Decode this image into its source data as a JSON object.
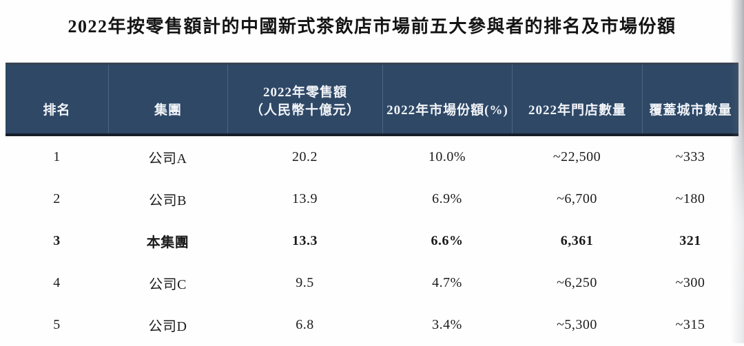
{
  "title": "2022年按零售額計的中國新式茶飲店市場前五大參與者的排名及市場份額",
  "table": {
    "columns": [
      {
        "line1": "排名"
      },
      {
        "line1": "集團"
      },
      {
        "line1": "2022年零售額",
        "line2": "（人民幣十億元）"
      },
      {
        "line1": "2022年市場份額(%)"
      },
      {
        "line1": "2022年門店數量"
      },
      {
        "line1": "覆蓋城市數量"
      }
    ],
    "rows": [
      {
        "cells": [
          "1",
          "公司A",
          "20.2",
          "10.0%",
          "~22,500",
          "~333"
        ],
        "emphasis": false
      },
      {
        "cells": [
          "2",
          "公司B",
          "13.9",
          "6.9%",
          "~6,700",
          "~180"
        ],
        "emphasis": false
      },
      {
        "cells": [
          "3",
          "本集團",
          "13.3",
          "6.6%",
          "6,361",
          "321"
        ],
        "emphasis": true
      },
      {
        "cells": [
          "4",
          "公司C",
          "9.5",
          "4.7%",
          "~6,250",
          "~300"
        ],
        "emphasis": false
      },
      {
        "cells": [
          "5",
          "公司D",
          "6.8",
          "3.4%",
          "~5,300",
          "~315"
        ],
        "emphasis": false
      }
    ]
  },
  "colors": {
    "header_bg": "#2e4866",
    "header_text": "#f2f4f8",
    "header_border_bottom": "#171e2a",
    "body_text": "#1c1c1c",
    "page_bg": "#fefefe"
  }
}
